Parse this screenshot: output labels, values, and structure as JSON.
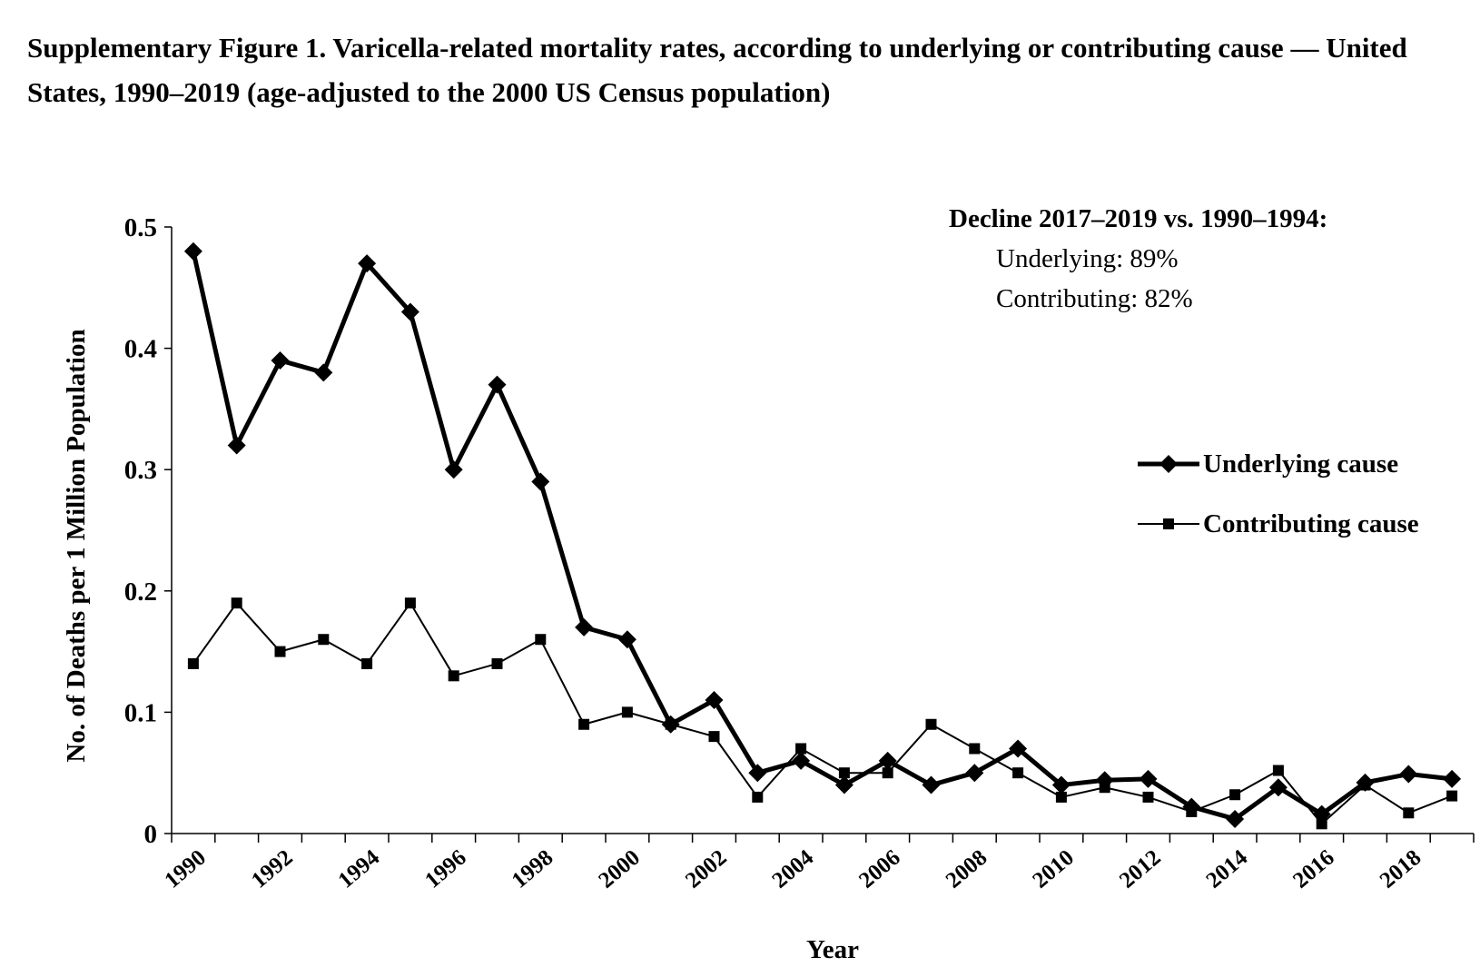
{
  "chart_data": {
    "type": "line",
    "title": "Supplementary Figure 1. Varicella-related mortality rates, according to underlying or contributing cause — United States, 1990–2019 (age-adjusted to the 2000 US Census population)",
    "xlabel": "Year",
    "ylabel": "No. of Deaths per 1 Million Population",
    "ylim": [
      0,
      0.5
    ],
    "yticks": [
      "0",
      "0.1",
      "0.2",
      "0.3",
      "0.4",
      "0.5"
    ],
    "xtick_labels": [
      "1990",
      "1992",
      "1994",
      "1996",
      "1998",
      "2000",
      "2002",
      "2004",
      "2006",
      "2008",
      "2010",
      "2012",
      "2014",
      "2016",
      "2018"
    ],
    "x": [
      1990,
      1991,
      1992,
      1993,
      1994,
      1995,
      1996,
      1997,
      1998,
      1999,
      2000,
      2001,
      2002,
      2003,
      2004,
      2005,
      2006,
      2007,
      2008,
      2009,
      2010,
      2011,
      2012,
      2013,
      2014,
      2015,
      2016,
      2017,
      2018,
      2019
    ],
    "grid": false,
    "legend_position": "right",
    "series": [
      {
        "name": "Underlying cause",
        "marker": "diamond",
        "line": "thick",
        "color": "#000000",
        "values": [
          0.48,
          0.32,
          0.39,
          0.38,
          0.47,
          0.43,
          0.3,
          0.37,
          0.29,
          0.17,
          0.16,
          0.09,
          0.11,
          0.05,
          0.06,
          0.04,
          0.06,
          0.04,
          0.05,
          0.07,
          0.04,
          0.044,
          0.045,
          0.022,
          0.012,
          0.038,
          0.016,
          0.042,
          0.049,
          0.045
        ]
      },
      {
        "name": "Contributing cause",
        "marker": "square",
        "line": "thin",
        "color": "#000000",
        "values": [
          0.14,
          0.19,
          0.15,
          0.16,
          0.14,
          0.19,
          0.13,
          0.14,
          0.16,
          0.09,
          0.1,
          0.09,
          0.08,
          0.03,
          0.07,
          0.05,
          0.05,
          0.09,
          0.07,
          0.05,
          0.03,
          0.038,
          0.03,
          0.018,
          0.032,
          0.052,
          0.008,
          0.04,
          0.017,
          0.031
        ]
      }
    ],
    "annotation": {
      "heading": "Decline 2017–2019 vs. 1990–1994:",
      "lines": [
        "Underlying: 89%",
        "Contributing: 82%"
      ]
    }
  }
}
